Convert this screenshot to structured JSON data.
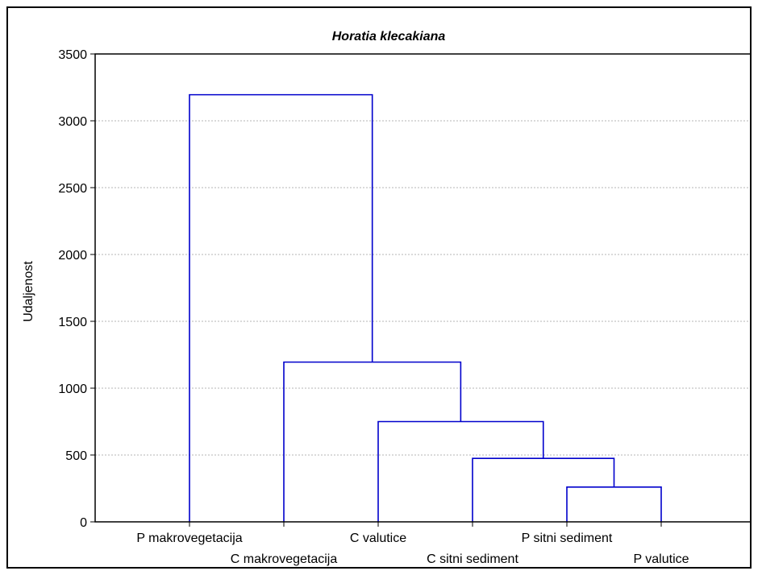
{
  "chart_data": {
    "type": "dendrogram",
    "title": "Horatia klecakiana",
    "ylabel": "Udaljenost",
    "xlabel": "",
    "ylim": [
      0,
      3500
    ],
    "yticks": [
      0,
      500,
      1000,
      1500,
      2000,
      2500,
      3000,
      3500
    ],
    "grid": true,
    "line_color": "#0000cc",
    "leaves": [
      "P makrovegetacija",
      "C makrovegetacija",
      "C valutice",
      "C sitni sediment",
      "P sitni sediment",
      "P valutice"
    ],
    "merges": [
      {
        "children": [
          "leaf:4",
          "leaf:5"
        ],
        "height": 260
      },
      {
        "children": [
          "leaf:3",
          "node:0"
        ],
        "height": 475
      },
      {
        "children": [
          "leaf:2",
          "node:1"
        ],
        "height": 750
      },
      {
        "children": [
          "leaf:1",
          "node:2"
        ],
        "height": 1195
      },
      {
        "children": [
          "leaf:0",
          "node:3"
        ],
        "height": 3195
      }
    ]
  }
}
